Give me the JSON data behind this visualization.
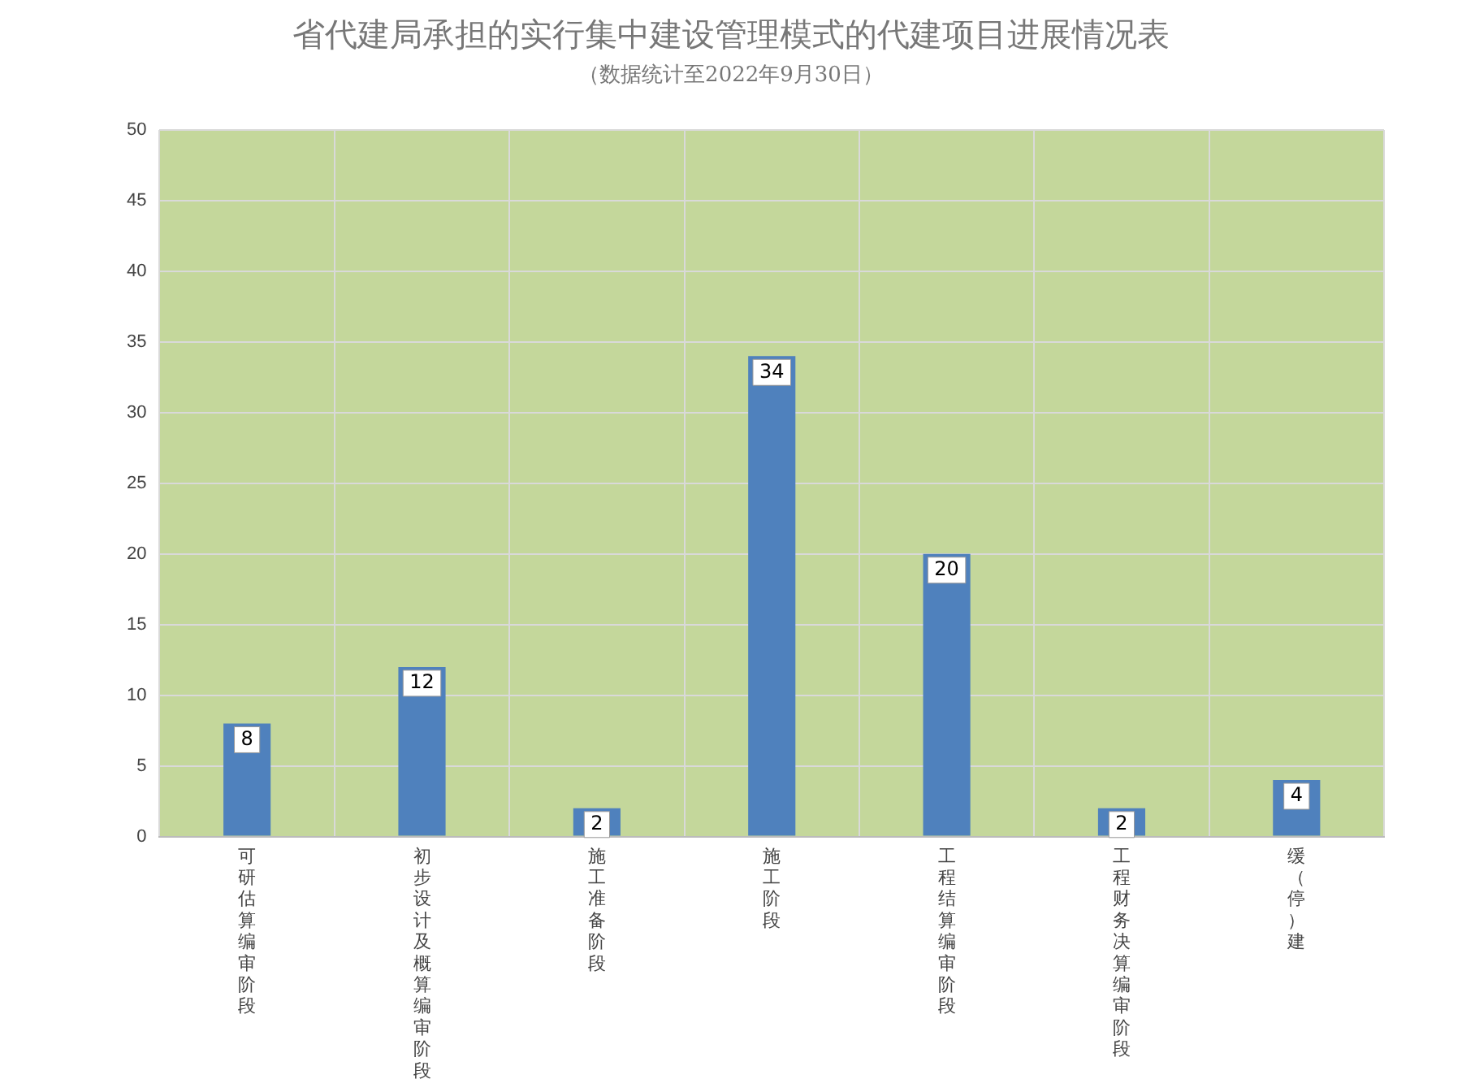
{
  "chart_data": {
    "type": "bar",
    "title": "省代建局承担的实行集中建设管理模式的代建项目进展情况表",
    "subtitle": "（数据统计至2022年9月30日）",
    "categories": [
      "可研估算编审阶段",
      "初步设计及概算编审阶段",
      "施工准备阶段",
      "施工阶段",
      "工程结算编审阶段",
      "工程财务决算编审阶段",
      "缓（停）建"
    ],
    "values": [
      8,
      12,
      2,
      34,
      20,
      2,
      4
    ],
    "color": "#4f81bd",
    "ylim": [
      0,
      50
    ],
    "yticks": [
      0,
      5,
      10,
      15,
      20,
      25,
      30,
      35,
      40,
      45,
      50
    ],
    "grid": true,
    "data_labels": true,
    "legend": false
  }
}
